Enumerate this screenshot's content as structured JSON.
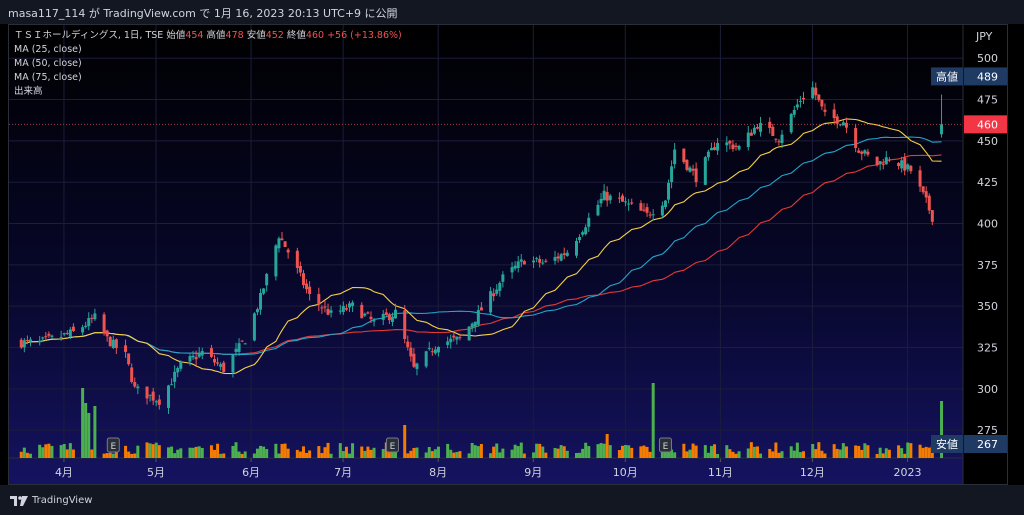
{
  "header": {
    "title": "masa117_114 が TradingView.com で 1月 16, 2023 20:13 UTC+9 に公開"
  },
  "legend": {
    "symbol": "ＴＳＩホールディングス, 1日, TSE",
    "open_label": "始値",
    "open": "454",
    "high_label": "高値",
    "high": "478",
    "low_label": "安値",
    "low": "452",
    "close_label": "終値",
    "close": "460",
    "change": "+56 (+13.86%)",
    "ma25": "MA (25, close)",
    "ma50": "MA (50, close)",
    "ma75": "MA (75, close)",
    "volume": "出来高"
  },
  "price_tags": {
    "high_label": "高値",
    "high_value": "489",
    "last_value": "460",
    "low_label": "安値",
    "low_value": "267"
  },
  "axis_unit": "JPY",
  "brand": "TradingView",
  "colors": {
    "up": "#26a69a",
    "down": "#ef5350",
    "vol_up": "#4caf50",
    "vol_down": "#f57c00",
    "ma25": "#f5d142",
    "ma50": "#22a6c9",
    "ma75": "#e53935",
    "background": "#000000"
  },
  "chart_data": {
    "type": "candlestick",
    "y_ticks": [
      275,
      300,
      325,
      350,
      375,
      400,
      425,
      450,
      475,
      500
    ],
    "ylim": [
      263,
      508
    ],
    "x_ticks": [
      "4月",
      "5月",
      "6月",
      "7月",
      "8月",
      "9月",
      "10月",
      "11月",
      "12月",
      "2023"
    ],
    "earnings_markers": [
      "E",
      "E",
      "E"
    ],
    "price_path": [
      {
        "date": "2022-03-28",
        "close": 328
      },
      {
        "date": "2022-04-08",
        "close": 334
      },
      {
        "date": "2022-04-15",
        "close": 343
      },
      {
        "date": "2022-04-19",
        "close": 330
      },
      {
        "date": "2022-04-25",
        "close": 320
      },
      {
        "date": "2022-04-28",
        "close": 300
      },
      {
        "date": "2022-05-06",
        "close": 293
      },
      {
        "date": "2022-05-13",
        "close": 314
      },
      {
        "date": "2022-05-20",
        "close": 322
      },
      {
        "date": "2022-05-27",
        "close": 312
      },
      {
        "date": "2022-06-03",
        "close": 330
      },
      {
        "date": "2022-06-08",
        "close": 355
      },
      {
        "date": "2022-06-14",
        "close": 393
      },
      {
        "date": "2022-06-17",
        "close": 383
      },
      {
        "date": "2022-06-24",
        "close": 356
      },
      {
        "date": "2022-07-01",
        "close": 345
      },
      {
        "date": "2022-07-08",
        "close": 350
      },
      {
        "date": "2022-07-15",
        "close": 340
      },
      {
        "date": "2022-07-22",
        "close": 346
      },
      {
        "date": "2022-07-28",
        "close": 312
      },
      {
        "date": "2022-08-05",
        "close": 328
      },
      {
        "date": "2022-08-12",
        "close": 330
      },
      {
        "date": "2022-08-19",
        "close": 348
      },
      {
        "date": "2022-08-26",
        "close": 367
      },
      {
        "date": "2022-09-02",
        "close": 378
      },
      {
        "date": "2022-09-09",
        "close": 376
      },
      {
        "date": "2022-09-16",
        "close": 383
      },
      {
        "date": "2022-09-22",
        "close": 400
      },
      {
        "date": "2022-09-28",
        "close": 417
      },
      {
        "date": "2022-10-05",
        "close": 412
      },
      {
        "date": "2022-10-12",
        "close": 405
      },
      {
        "date": "2022-10-18",
        "close": 415
      },
      {
        "date": "2022-10-21",
        "close": 445
      },
      {
        "date": "2022-10-28",
        "close": 428
      },
      {
        "date": "2022-11-04",
        "close": 450
      },
      {
        "date": "2022-11-11",
        "close": 446
      },
      {
        "date": "2022-11-17",
        "close": 460
      },
      {
        "date": "2022-11-24",
        "close": 452
      },
      {
        "date": "2022-12-01",
        "close": 475
      },
      {
        "date": "2022-12-05",
        "close": 482
      },
      {
        "date": "2022-12-09",
        "close": 465
      },
      {
        "date": "2022-12-15",
        "close": 462
      },
      {
        "date": "2022-12-20",
        "close": 445
      },
      {
        "date": "2022-12-26",
        "close": 436
      },
      {
        "date": "2022-12-30",
        "close": 440
      },
      {
        "date": "2023-01-06",
        "close": 432
      },
      {
        "date": "2023-01-11",
        "close": 413
      },
      {
        "date": "2023-01-13",
        "close": 404
      },
      {
        "date": "2023-01-16",
        "close": 460
      }
    ],
    "volume_spikes": [
      {
        "date": "2022-04-11",
        "relative": 0.7
      },
      {
        "date": "2022-04-12",
        "relative": 0.55
      },
      {
        "date": "2022-04-13",
        "relative": 0.45
      },
      {
        "date": "2022-04-15",
        "relative": 0.52
      },
      {
        "date": "2022-07-25",
        "relative": 0.33
      },
      {
        "date": "2022-09-29",
        "relative": 0.24
      },
      {
        "date": "2022-10-14",
        "relative": 0.75
      },
      {
        "date": "2023-01-16",
        "relative": 0.57
      }
    ]
  }
}
